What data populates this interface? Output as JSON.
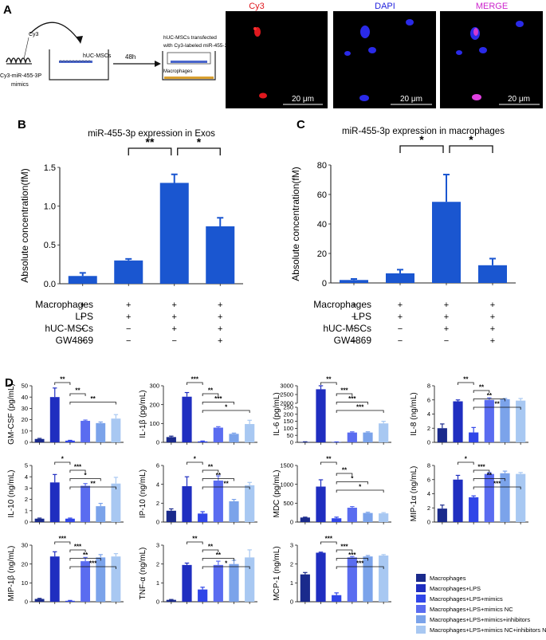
{
  "colors": {
    "macrophages": "#1a2a8c",
    "lps": "#1f2ec0",
    "mimics": "#3046e8",
    "mimics_nc": "#5a6cf0",
    "inhibitors": "#7ba3ea",
    "inhibitors_nc": "#a8c8f2",
    "bar_bc": "#1a56d0",
    "cy3": "#e0181e",
    "dapi": "#2222dd",
    "merge": "#cc22cc"
  },
  "panel_a": {
    "letter": "A",
    "probe_label": "Cy3",
    "mimics_label": "Cy3-miR-455-3P mimics",
    "well_label": "hUC-MSCs",
    "time_label": "48h",
    "transfected_label": "hUC-MSCs transfected with Cy3-labeled miR-455-3P",
    "macrophages_label": "Macrophages",
    "micro_titles": [
      "Cy3",
      "DAPI",
      "MERGE"
    ],
    "scale_bar": "20 μm"
  },
  "conditions": {
    "row_labels": [
      "Macrophages",
      "LPS",
      "hUC-MSCs",
      "GW4869"
    ],
    "matrix": [
      [
        "+",
        "+",
        "+",
        "+"
      ],
      [
        "−",
        "+",
        "+",
        "+"
      ],
      [
        "−",
        "−",
        "+",
        "+"
      ],
      [
        "−",
        "−",
        "−",
        "+"
      ]
    ]
  },
  "legend": [
    "Macrophages",
    "Macrophages+LPS",
    "Macrophages+LPS+mimics",
    "Macrophages+LPS+mimics NC",
    "Macrophages+LPS+mimics+inhibitors",
    "Macrophages+LPS+mimics NC+inhibitors NC"
  ],
  "chart_data": [
    {
      "id": "B",
      "type": "bar",
      "title": "miR-455-3p expression in Exos",
      "ylabel": "Absolute concentration(fM)",
      "ylim": [
        0,
        1.5
      ],
      "yticks": [
        "0.0",
        "0.5",
        "1.0",
        "1.5"
      ],
      "ytick_values": [
        0,
        0.5,
        1,
        1.5
      ],
      "values": [
        0.1,
        0.3,
        1.3,
        0.74
      ],
      "errors": [
        0.04,
        0.02,
        0.11,
        0.11
      ],
      "sig": [
        {
          "from": 1,
          "to": 2,
          "label": "**"
        },
        {
          "from": 2,
          "to": 3,
          "label": "*"
        }
      ]
    },
    {
      "id": "C",
      "type": "bar",
      "title": "miR-455-3p expression in macrophages",
      "ylabel": "Absolute concentration(fM)",
      "ylim": [
        0,
        80
      ],
      "yticks": [
        "0",
        "20",
        "40",
        "60",
        "80"
      ],
      "ytick_values": [
        0,
        20,
        40,
        60,
        80
      ],
      "values": [
        2,
        6.5,
        55,
        12
      ],
      "errors": [
        0.7,
        2.5,
        18.5,
        4.5
      ],
      "sig": [
        {
          "from": 1,
          "to": 2,
          "label": "*"
        },
        {
          "from": 2,
          "to": 3,
          "label": "*"
        }
      ]
    },
    {
      "id": "GM-CSF",
      "type": "bar",
      "ylabel": "GM-CSF (pg/mL)",
      "ylim": [
        0,
        50
      ],
      "yticks": [
        "0",
        "10",
        "20",
        "30",
        "40",
        "50"
      ],
      "ytick_values": [
        0,
        10,
        20,
        30,
        40,
        50
      ],
      "values": [
        3,
        40,
        1.5,
        19,
        17,
        21
      ],
      "errors": [
        0.5,
        8,
        0.3,
        0.7,
        1,
        3.5
      ],
      "sig": [
        {
          "from": 1,
          "to": 2,
          "label": "**"
        },
        {
          "from": 2,
          "to": 3,
          "label": "**"
        },
        {
          "from": 2,
          "to": 5,
          "label": "**"
        }
      ]
    },
    {
      "id": "IL-1b",
      "type": "bar",
      "ylabel": "IL-1β (pg/mL)",
      "ylim": [
        0,
        300
      ],
      "yticks": [
        "0",
        "100",
        "200",
        "300"
      ],
      "ytick_values": [
        0,
        100,
        200,
        300
      ],
      "values": [
        28,
        242,
        5,
        78,
        45,
        97
      ],
      "errors": [
        5,
        22,
        2,
        5,
        4,
        20
      ],
      "sig": [
        {
          "from": 1,
          "to": 2,
          "label": "***"
        },
        {
          "from": 2,
          "to": 3,
          "label": "**"
        },
        {
          "from": 2,
          "to": 4,
          "label": "***"
        },
        {
          "from": 2,
          "to": 5,
          "label": "*"
        }
      ]
    },
    {
      "id": "IL-6",
      "type": "bar",
      "ylabel": "IL-6 (pg/mL)",
      "break": true,
      "yticks": [
        "0",
        "50",
        "100",
        "150",
        "200",
        "250",
        "2000",
        "2500",
        "3000"
      ],
      "values": [
        3,
        2800,
        2,
        70,
        70,
        135
      ],
      "errors": [
        1,
        200,
        1,
        5,
        5,
        15
      ],
      "sig": [
        {
          "from": 1,
          "to": 2,
          "label": "**"
        },
        {
          "from": 2,
          "to": 3,
          "label": "***"
        },
        {
          "from": 2,
          "to": 4,
          "label": "***"
        },
        {
          "from": 2,
          "to": 5,
          "label": "***"
        }
      ]
    },
    {
      "id": "IL-8",
      "type": "bar",
      "ylabel": "IL-8 (ng/mL)",
      "ylim": [
        0,
        8
      ],
      "yticks": [
        "0",
        "2",
        "4",
        "6",
        "8"
      ],
      "ytick_values": [
        0,
        2,
        4,
        6,
        8
      ],
      "values": [
        2,
        5.8,
        1.4,
        6,
        6.1,
        5.9
      ],
      "errors": [
        0.6,
        0.2,
        0.7,
        0.3,
        0.1,
        0.3
      ],
      "sig": [
        {
          "from": 1,
          "to": 2,
          "label": "**"
        },
        {
          "from": 2,
          "to": 3,
          "label": "**"
        },
        {
          "from": 2,
          "to": 4,
          "label": "**"
        },
        {
          "from": 2,
          "to": 5,
          "label": "**"
        }
      ]
    },
    {
      "id": "IL-10",
      "type": "bar",
      "ylabel": "IL-10 (ng/mL)",
      "ylim": [
        0,
        5
      ],
      "yticks": [
        "0",
        "1",
        "2",
        "3",
        "4",
        "5"
      ],
      "ytick_values": [
        0,
        1,
        2,
        3,
        4,
        5
      ],
      "values": [
        0.3,
        3.5,
        0.3,
        3.2,
        1.4,
        3.4
      ],
      "errors": [
        0.05,
        0.7,
        0.05,
        0.2,
        0.25,
        0.55
      ],
      "sig": [
        {
          "from": 1,
          "to": 2,
          "label": "*"
        },
        {
          "from": 2,
          "to": 3,
          "label": "***"
        },
        {
          "from": 2,
          "to": 4,
          "label": "*"
        },
        {
          "from": 2,
          "to": 5,
          "label": "**"
        }
      ]
    },
    {
      "id": "IP-10",
      "type": "bar",
      "ylabel": "IP-10 (ng/mL)",
      "ylim": [
        0,
        6
      ],
      "yticks": [
        "0",
        "2",
        "4",
        "6"
      ],
      "ytick_values": [
        0,
        2,
        4,
        6
      ],
      "values": [
        1.2,
        3.8,
        0.9,
        4.4,
        2.2,
        3.9
      ],
      "errors": [
        0.2,
        1,
        0.2,
        0.5,
        0.2,
        0.3
      ],
      "sig": [
        {
          "from": 1,
          "to": 2,
          "label": "*"
        },
        {
          "from": 2,
          "to": 3,
          "label": "**"
        },
        {
          "from": 2,
          "to": 4,
          "label": "**"
        },
        {
          "from": 2,
          "to": 5,
          "label": "**"
        }
      ]
    },
    {
      "id": "MDC",
      "type": "bar",
      "ylabel": "MDC (pg/mL)",
      "ylim": [
        0,
        1500
      ],
      "yticks": [
        "0",
        "500",
        "1000",
        "1500"
      ],
      "ytick_values": [
        0,
        500,
        1000,
        1500
      ],
      "values": [
        120,
        940,
        100,
        380,
        240,
        230
      ],
      "errors": [
        10,
        180,
        30,
        30,
        20,
        20
      ],
      "sig": [
        {
          "from": 1,
          "to": 2,
          "label": "**"
        },
        {
          "from": 2,
          "to": 3,
          "label": "**"
        },
        {
          "from": 2,
          "to": 4,
          "label": "*"
        },
        {
          "from": 2,
          "to": 5,
          "label": "*"
        }
      ]
    },
    {
      "id": "MIP-1a",
      "type": "bar",
      "ylabel": "MIP-1α (ng/mL)",
      "ylim": [
        0,
        8
      ],
      "yticks": [
        "0",
        "2",
        "4",
        "6",
        "8"
      ],
      "ytick_values": [
        0,
        2,
        4,
        6,
        8
      ],
      "values": [
        1.9,
        6,
        3.5,
        6.8,
        6.9,
        6.8
      ],
      "errors": [
        0.5,
        0.6,
        0.2,
        0.2,
        0.3,
        0.2
      ],
      "sig": [
        {
          "from": 1,
          "to": 2,
          "label": "*"
        },
        {
          "from": 2,
          "to": 3,
          "label": "***"
        },
        {
          "from": 2,
          "to": 4,
          "label": "**"
        },
        {
          "from": 2,
          "to": 5,
          "label": "***"
        }
      ]
    },
    {
      "id": "MIP-1b",
      "type": "bar",
      "ylabel": "MIP-1β (ng/mL)",
      "ylim": [
        0,
        30
      ],
      "yticks": [
        "0",
        "10",
        "20",
        "30"
      ],
      "ytick_values": [
        0,
        10,
        20,
        30
      ],
      "values": [
        1.5,
        24,
        0.5,
        21.5,
        23.5,
        24
      ],
      "errors": [
        0.3,
        2.5,
        0.2,
        2,
        1.5,
        1.5
      ],
      "sig": [
        {
          "from": 1,
          "to": 2,
          "label": "***"
        },
        {
          "from": 2,
          "to": 3,
          "label": "***"
        },
        {
          "from": 2,
          "to": 4,
          "label": "**"
        },
        {
          "from": 2,
          "to": 5,
          "label": "***"
        }
      ]
    },
    {
      "id": "TNF-a",
      "type": "bar",
      "ylabel": "TNF-α (ng/mL)",
      "ylim": [
        0,
        3
      ],
      "yticks": [
        "0",
        "1",
        "2",
        "3"
      ],
      "ytick_values": [
        0,
        1,
        2,
        3
      ],
      "values": [
        0.1,
        1.95,
        0.65,
        1.95,
        2.0,
        2.35
      ],
      "errors": [
        0.02,
        0.1,
        0.12,
        0.2,
        0.2,
        0.4
      ],
      "sig": [
        {
          "from": 1,
          "to": 2,
          "label": "**"
        },
        {
          "from": 2,
          "to": 3,
          "label": "**"
        },
        {
          "from": 2,
          "to": 4,
          "label": "**"
        },
        {
          "from": 2,
          "to": 5,
          "label": "*"
        }
      ]
    },
    {
      "id": "MCP-1",
      "type": "bar",
      "ylabel": "MCP-1 (ng/mL)",
      "ylim": [
        0,
        3
      ],
      "yticks": [
        "0",
        "1",
        "2",
        "3"
      ],
      "ytick_values": [
        0,
        1,
        2,
        3
      ],
      "values": [
        1.45,
        2.6,
        0.35,
        2.35,
        2.4,
        2.45
      ],
      "errors": [
        0.1,
        0.03,
        0.12,
        0.05,
        0.05,
        0.05
      ],
      "sig": [
        {
          "from": 1,
          "to": 2,
          "label": "***"
        },
        {
          "from": 2,
          "to": 3,
          "label": "***"
        },
        {
          "from": 2,
          "to": 4,
          "label": "***"
        },
        {
          "from": 2,
          "to": 5,
          "label": "***"
        }
      ]
    }
  ],
  "letters": {
    "B": "B",
    "C": "C",
    "D": "D"
  }
}
